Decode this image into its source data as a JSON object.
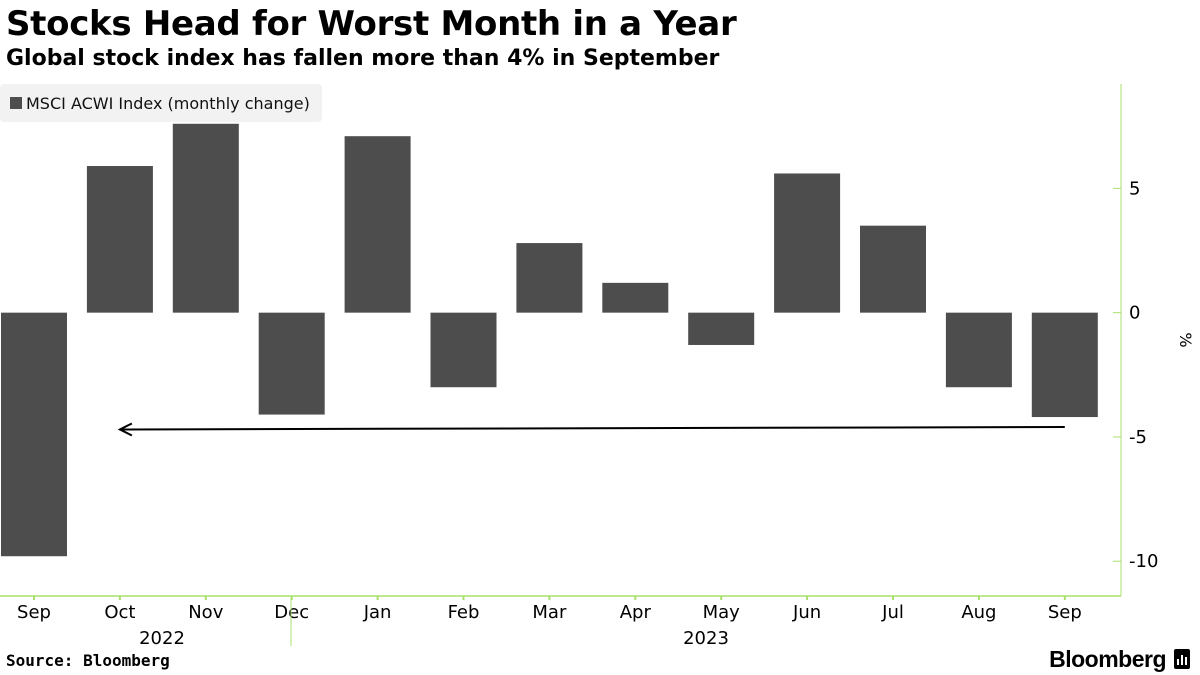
{
  "header": {
    "title": "Stocks Head for Worst Month in a Year",
    "subtitle": "Global stock index has fallen more than 4% in September"
  },
  "legend": {
    "label": "MSCI ACWI Index (monthly change)"
  },
  "footer": {
    "source": "Source: Bloomberg",
    "brand": "Bloomberg",
    "brand_icon": "bloomberg-chart-icon"
  },
  "colors": {
    "bar": "#4d4d4d",
    "axis": "#a8e06c",
    "background": "#ffffff",
    "legend_bg": "#f2f2f2",
    "arrow": "#000000"
  },
  "chart_data": {
    "type": "bar",
    "title": "Stocks Head for Worst Month in a Year",
    "subtitle": "Global stock index has fallen more than 4% in September",
    "categories": [
      "Sep",
      "Oct",
      "Nov",
      "Dec",
      "Jan",
      "Feb",
      "Mar",
      "Apr",
      "May",
      "Jun",
      "Jul",
      "Aug",
      "Sep"
    ],
    "year_labels": [
      {
        "label": "2022",
        "after_category": "Oct"
      },
      {
        "label": "2023",
        "after_category": "May"
      }
    ],
    "series": [
      {
        "name": "MSCI ACWI Index (monthly change)",
        "values": [
          -9.8,
          5.9,
          7.6,
          -4.1,
          7.1,
          -3.0,
          2.8,
          1.2,
          -1.3,
          5.6,
          3.5,
          -3.0,
          -4.2
        ]
      }
    ],
    "ylabel": "%",
    "ylim": [
      -11.4,
      9.2
    ],
    "yticks": [
      5,
      0,
      -5,
      -10
    ],
    "ytick_labels": [
      "5",
      "0",
      "-5",
      "-10"
    ],
    "y_axis_position": "right",
    "grid": false,
    "legend_position": "top-left",
    "annotation": {
      "type": "arrow",
      "from_category_index": 12,
      "to_category_index": 1,
      "y_start": -4.6,
      "y_end": -4.7
    },
    "source": "Source: Bloomberg"
  }
}
